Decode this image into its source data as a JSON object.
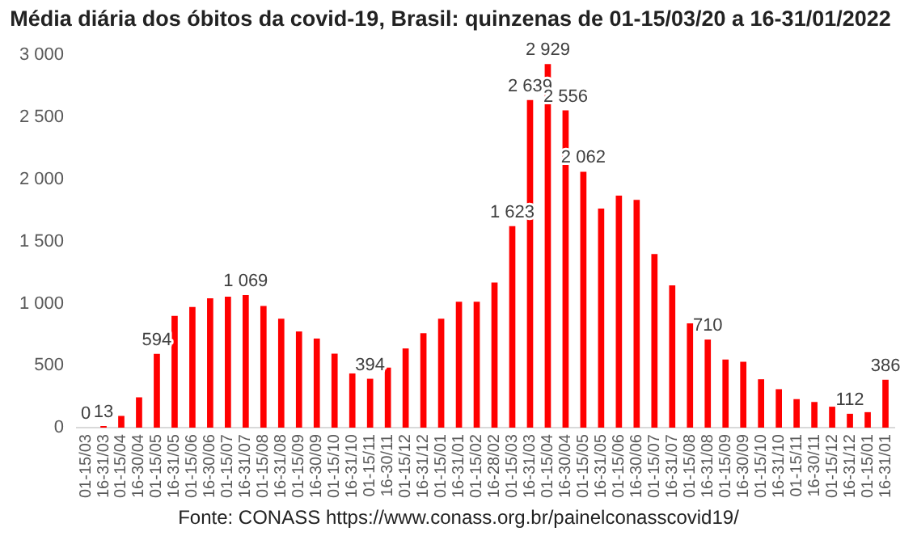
{
  "chart_data": {
    "type": "bar",
    "title": "Média diária dos óbitos da covid-19, Brasil: quinzenas de 01-15/03/20 a 16-31/01/2022",
    "categories": [
      "01-15/03",
      "16-31/03",
      "01-15/04",
      "16-30/04",
      "01-15/05",
      "16-31/05",
      "01-15/06",
      "16-30/06",
      "01-15/07",
      "16-31/07",
      "01-15/08",
      "16-31/08",
      "01-15/09",
      "16-30/09",
      "01-15/10",
      "16-31/10",
      "01-15/11",
      "16-30/11",
      "01-15/12",
      "16-31/12",
      "01-15/01",
      "16-31/01",
      "01-15/02",
      "16-28/02",
      "01-15/03",
      "16-31/03",
      "01-15/04",
      "16-30/04",
      "01-15/05",
      "16-31/05",
      "01-15/06",
      "16-30/06",
      "01-15/07",
      "16-31/07",
      "01-15/08",
      "16-31/08",
      "01-15/09",
      "16-30/09",
      "01-15/10",
      "16-31/10",
      "01-15/11",
      "16-30/11",
      "01-15/12",
      "16-31/12",
      "01-15/01",
      "16-31/01"
    ],
    "values": [
      0,
      13,
      94,
      244,
      594,
      901,
      972,
      1042,
      1056,
      1069,
      981,
      878,
      775,
      718,
      596,
      437,
      394,
      484,
      638,
      761,
      878,
      1014,
      1014,
      1169,
      1623,
      2639,
      2929,
      2556,
      2062,
      1765,
      1869,
      1836,
      1399,
      1146,
      840,
      710,
      549,
      531,
      390,
      310,
      230,
      207,
      169,
      112,
      125,
      386
    ],
    "value_labels": [
      "0",
      "13",
      null,
      null,
      "594",
      null,
      null,
      null,
      null,
      "1 069",
      null,
      null,
      null,
      null,
      null,
      null,
      "394",
      null,
      null,
      null,
      null,
      null,
      null,
      null,
      "1 623",
      "2 639",
      "2 929",
      "2 556",
      "2 062",
      null,
      null,
      null,
      null,
      null,
      null,
      "710",
      null,
      null,
      null,
      null,
      null,
      null,
      null,
      "112",
      null,
      "386"
    ],
    "color": "#ff0000",
    "ylim": [
      0,
      3000
    ],
    "yticks": [
      {
        "value": 0,
        "label": "0"
      },
      {
        "value": 500,
        "label": "500"
      },
      {
        "value": 1000,
        "label": "1 000"
      },
      {
        "value": 1500,
        "label": "1 500"
      },
      {
        "value": 2000,
        "label": "2 000"
      },
      {
        "value": 2500,
        "label": "2 500"
      },
      {
        "value": 3000,
        "label": "3 000"
      }
    ],
    "grid": false,
    "legend": false,
    "annotations": [
      "Fonte: CONASS https://www.conass.org.br/painelconasscovid19/"
    ]
  }
}
